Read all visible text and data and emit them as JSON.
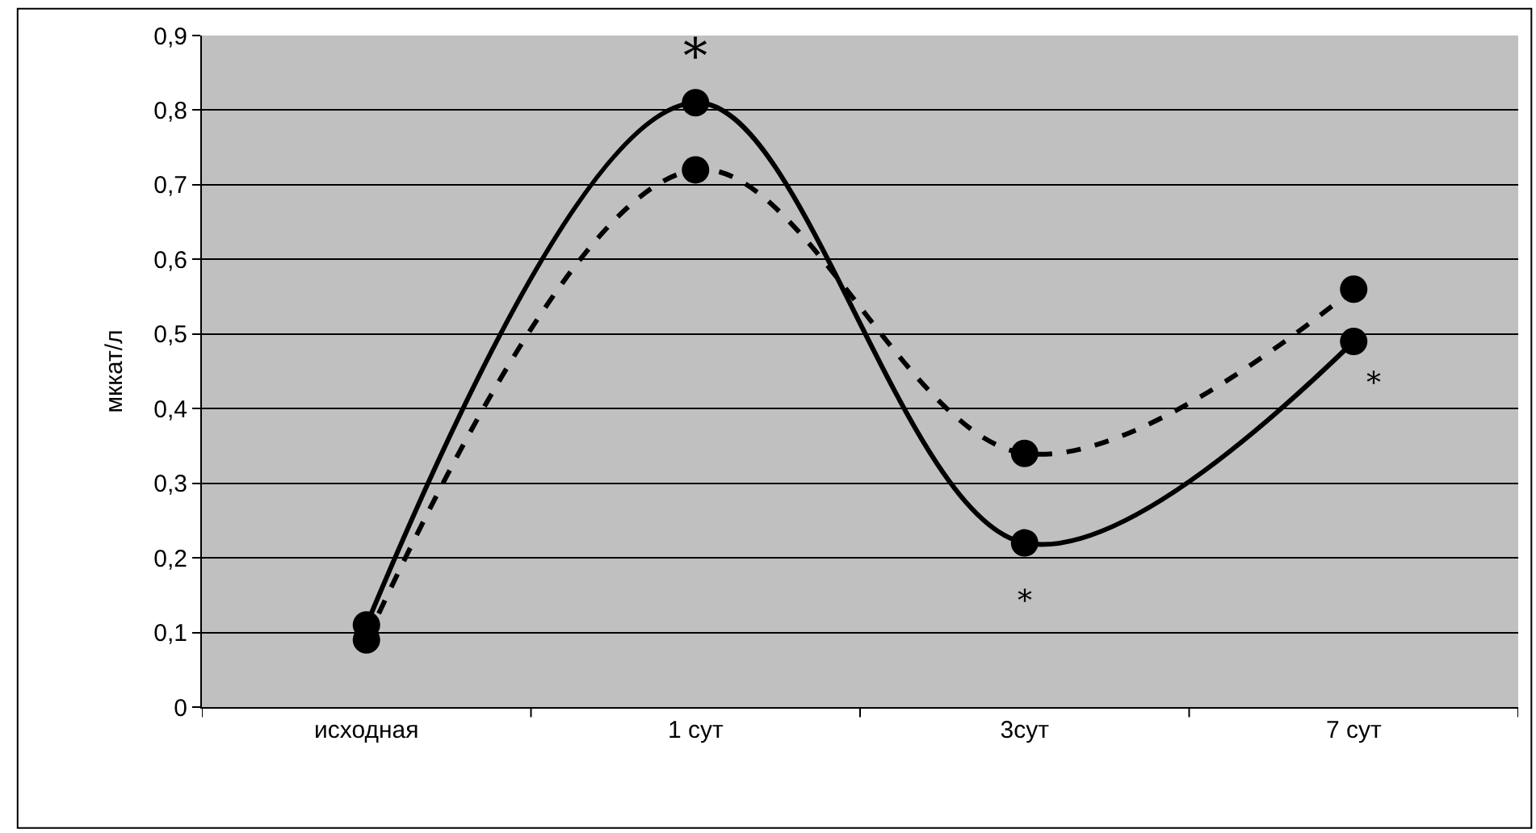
{
  "chart_data": {
    "type": "line",
    "ylabel": "мккат/л",
    "categories": [
      "исходная",
      "1 сут",
      "3сут",
      "7 сут"
    ],
    "series": [
      {
        "color": "#000000",
        "line_style": "solid",
        "values": [
          0.11,
          0.81,
          0.22,
          0.49
        ]
      },
      {
        "color": "#000000",
        "line_style": "dashed",
        "values": [
          0.09,
          0.72,
          0.34,
          0.56
        ]
      }
    ],
    "ylim": [
      0,
      0.9
    ],
    "yticks": [
      {
        "value": 0,
        "label": "0"
      },
      {
        "value": 0.1,
        "label": "0,1"
      },
      {
        "value": 0.2,
        "label": "0,2"
      },
      {
        "value": 0.3,
        "label": "0,3"
      },
      {
        "value": 0.4,
        "label": "0,4"
      },
      {
        "value": 0.5,
        "label": "0,5"
      },
      {
        "value": 0.6,
        "label": "0,6"
      },
      {
        "value": 0.7,
        "label": "0,7"
      },
      {
        "value": 0.8,
        "label": "0,8"
      },
      {
        "value": 0.9,
        "label": "0,9"
      }
    ],
    "grid": "y",
    "marker": "circle",
    "legend": false,
    "annotations": [
      {
        "text": "*",
        "x": "1 сут",
        "y": 0.81
      },
      {
        "text": "*",
        "x": "3сут",
        "y": 0.22
      },
      {
        "text": "*",
        "x": "7 сут",
        "y": 0.49
      }
    ]
  }
}
